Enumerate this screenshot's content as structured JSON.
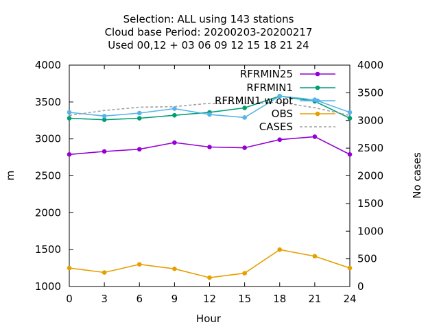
{
  "chart_data": {
    "type": "line",
    "title_lines": [
      "Selection: ALL using   143 stations",
      "Cloud base   Period: 20200203-20200217",
      "Used  00,12  + 03 06 09 12 15 18 21 24"
    ],
    "xlabel": "Hour",
    "ylabel": "m",
    "y2label": "No cases",
    "x": [
      0,
      3,
      6,
      9,
      12,
      15,
      18,
      21,
      24
    ],
    "xlim": [
      0,
      24
    ],
    "ylim": [
      1000,
      4000
    ],
    "y2lim": [
      0,
      4000
    ],
    "x_ticks": [
      "0",
      "3",
      "6",
      "9",
      "12",
      "15",
      "18",
      "21",
      "24"
    ],
    "y_ticks": [
      "1000",
      "1500",
      "2000",
      "2500",
      "3000",
      "3500",
      "4000"
    ],
    "y2_ticks": [
      "0",
      "500",
      "1000",
      "1500",
      "2000",
      "2500",
      "3000",
      "3500",
      "4000"
    ],
    "grid": false,
    "legend_position": "top-right",
    "series": [
      {
        "name": "RFRMIN25",
        "axis": "y",
        "color": "#9400d3",
        "dash": false,
        "values": [
          2790,
          2830,
          2860,
          2950,
          2890,
          2880,
          2990,
          3030,
          2790
        ]
      },
      {
        "name": "RFRMIN1",
        "axis": "y",
        "color": "#009e73",
        "dash": false,
        "values": [
          3280,
          3260,
          3280,
          3320,
          3360,
          3420,
          3580,
          3510,
          3280
        ]
      },
      {
        "name": "RFRMIN1 w opt",
        "axis": "y",
        "color": "#56b4e9",
        "dash": false,
        "values": [
          3360,
          3310,
          3350,
          3410,
          3330,
          3290,
          3580,
          3530,
          3360
        ]
      },
      {
        "name": "OBS",
        "axis": "y",
        "color": "#e69f00",
        "dash": false,
        "values": [
          1250,
          1190,
          1300,
          1240,
          1120,
          1180,
          1500,
          1410,
          1250
        ]
      },
      {
        "name": "CASES",
        "axis": "y2",
        "color": "#a0a0a0",
        "dash": true,
        "values": [
          3090,
          3180,
          3240,
          3250,
          3310,
          3300,
          3330,
          3230,
          3090
        ]
      }
    ]
  }
}
